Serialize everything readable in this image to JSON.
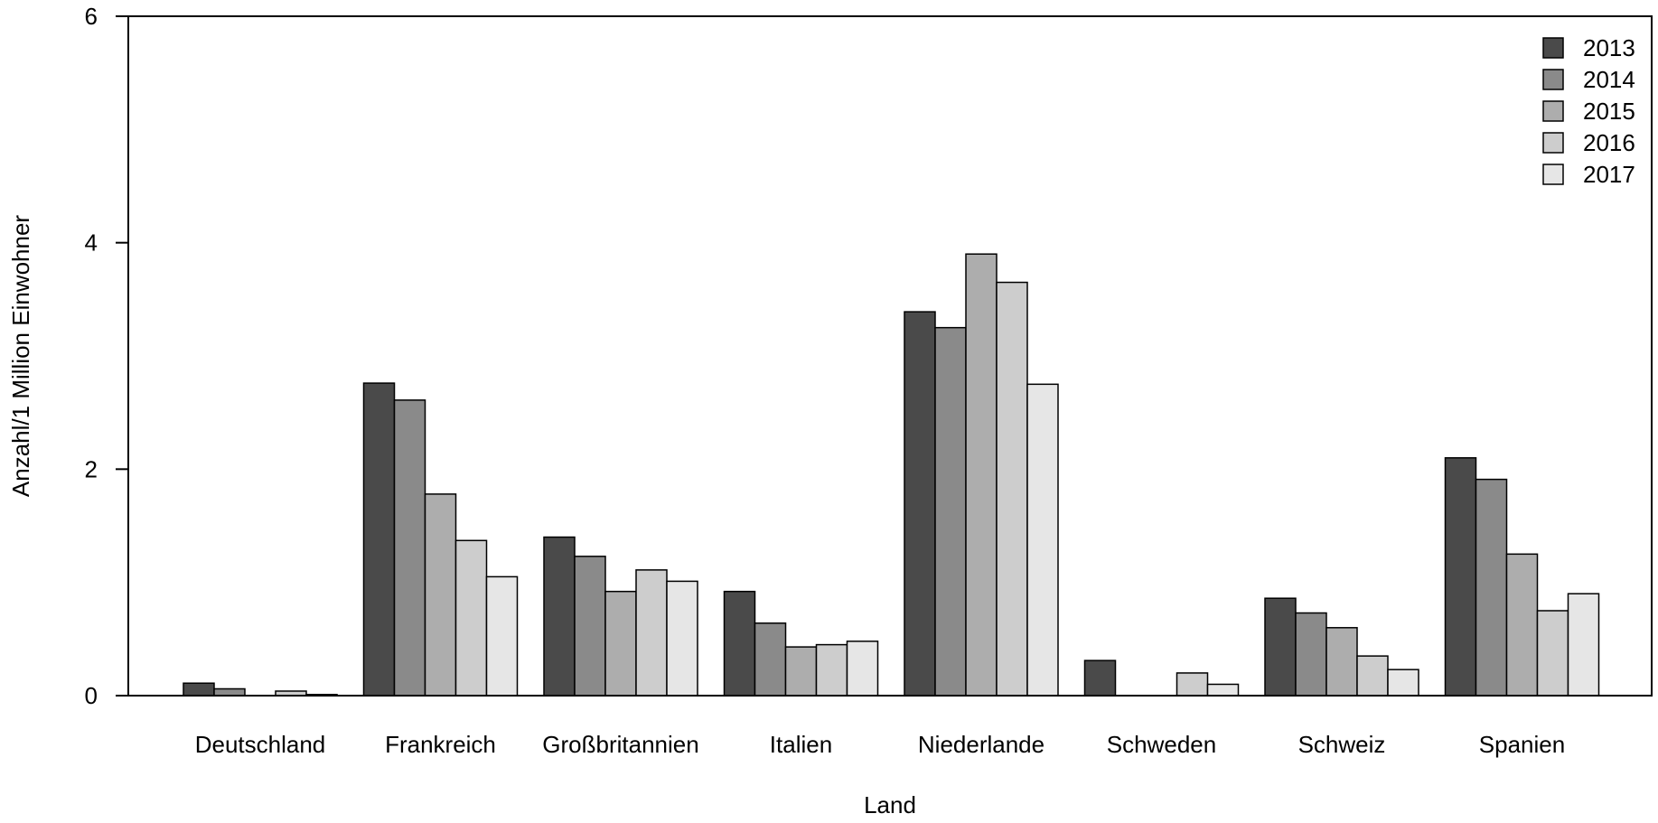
{
  "chart_data": {
    "type": "bar",
    "title": "",
    "xlabel": "Land",
    "ylabel": "Anzahl/1 Million Einwohner",
    "ylim": [
      0,
      6
    ],
    "yticks": [
      0,
      2,
      4,
      6
    ],
    "grid": false,
    "legend_position": "top-right",
    "categories": [
      "Deutschland",
      "Frankreich",
      "Großbritannien",
      "Italien",
      "Niederlande",
      "Schweden",
      "Schweiz",
      "Spanien"
    ],
    "series": [
      {
        "name": "2013",
        "color": "#4a4a4a",
        "values": [
          0.11,
          2.76,
          1.4,
          0.92,
          3.39,
          0.31,
          0.86,
          2.1
        ]
      },
      {
        "name": "2014",
        "color": "#8a8a8a",
        "values": [
          0.06,
          2.61,
          1.23,
          0.64,
          3.25,
          0.0,
          0.73,
          1.91
        ]
      },
      {
        "name": "2015",
        "color": "#adadad",
        "values": [
          0.0,
          1.78,
          0.92,
          0.43,
          3.9,
          0.0,
          0.6,
          1.25
        ]
      },
      {
        "name": "2016",
        "color": "#cdcdcd",
        "values": [
          0.04,
          1.37,
          1.11,
          0.45,
          3.65,
          0.2,
          0.35,
          0.75
        ]
      },
      {
        "name": "2017",
        "color": "#e6e6e6",
        "values": [
          0.01,
          1.05,
          1.01,
          0.48,
          2.75,
          0.1,
          0.23,
          0.9
        ]
      }
    ]
  }
}
